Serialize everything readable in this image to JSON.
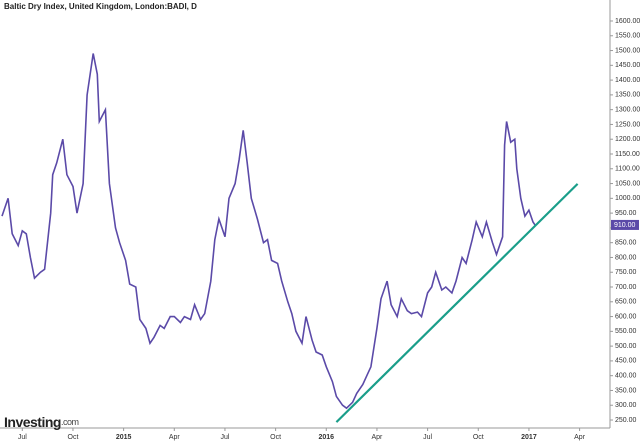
{
  "chart_data": {
    "type": "line",
    "title": "Baltic Dry Index, United Kingdom, London:BADI, D",
    "brand": {
      "name": "Investing",
      "suffix": ".com"
    },
    "xlim": [
      2014.39,
      2017.4
    ],
    "xticks": [
      {
        "value": 2014.5,
        "label": "Jul"
      },
      {
        "value": 2014.75,
        "label": "Oct"
      },
      2015,
      {
        "value": 2015.25,
        "label": "Apr"
      },
      {
        "value": 2015.5,
        "label": "Jul"
      },
      {
        "value": 2015.75,
        "label": "Oct"
      },
      2016,
      {
        "value": 2016.25,
        "label": "Apr"
      },
      {
        "value": 2016.5,
        "label": "Jul"
      },
      {
        "value": 2016.75,
        "label": "Oct"
      },
      2017,
      {
        "value": 2017.25,
        "label": "Apr"
      }
    ],
    "ylim": [
      223,
      1671
    ],
    "yticks": [
      {
        "value": 250,
        "label": "250.00"
      },
      {
        "value": 300,
        "label": "300.00"
      },
      {
        "value": 350,
        "label": "350.00"
      },
      {
        "value": 400,
        "label": "400.00"
      },
      {
        "value": 450,
        "label": "450.00"
      },
      {
        "value": 500,
        "label": "500.00"
      },
      {
        "value": 550,
        "label": "550.00"
      },
      {
        "value": 600,
        "label": "600.00"
      },
      {
        "value": 650,
        "label": "650.00"
      },
      {
        "value": 700,
        "label": "700.00"
      },
      {
        "value": 750,
        "label": "750.00"
      },
      {
        "value": 800,
        "label": "800.00"
      },
      {
        "value": 850,
        "label": "850.00"
      },
      {
        "value": 900,
        "label": "900.00"
      },
      {
        "value": 950,
        "label": "950.00"
      },
      {
        "value": 1000,
        "label": "1000.00"
      },
      {
        "value": 1050,
        "label": "1050.00"
      },
      {
        "value": 1100,
        "label": "1100.00"
      },
      {
        "value": 1150,
        "label": "1150.00"
      },
      {
        "value": 1200,
        "label": "1200.00"
      },
      {
        "value": 1250,
        "label": "1250.00"
      },
      {
        "value": 1300,
        "label": "1300.00"
      },
      {
        "value": 1350,
        "label": "1350.00"
      },
      {
        "value": 1400,
        "label": "1400.00"
      },
      {
        "value": 1450,
        "label": "1450.00"
      },
      {
        "value": 1500,
        "label": "1500.00"
      },
      {
        "value": 1550,
        "label": "1550.00"
      },
      {
        "value": 1600,
        "label": "1600.00"
      }
    ],
    "last_price": {
      "value": 910,
      "label": "910.00",
      "color": "#5b4aa8"
    },
    "series": [
      {
        "color": "#5b4aa8",
        "x": [
          2014.4,
          2014.43,
          2014.45,
          2014.48,
          2014.5,
          2014.52,
          2014.54,
          2014.56,
          2014.59,
          2014.61,
          2014.64,
          2014.65,
          2014.67,
          2014.7,
          2014.72,
          2014.75,
          2014.77,
          2014.8,
          2014.82,
          2014.85,
          2014.87,
          2014.88,
          2014.91,
          2014.93,
          2014.96,
          2014.98,
          2015.01,
          2015.03,
          2015.06,
          2015.08,
          2015.11,
          2015.13,
          2015.15,
          2015.18,
          2015.2,
          2015.23,
          2015.25,
          2015.28,
          2015.3,
          2015.33,
          2015.35,
          2015.38,
          2015.4,
          2015.43,
          2015.45,
          2015.47,
          2015.5,
          2015.52,
          2015.55,
          2015.57,
          2015.59,
          2015.61,
          2015.63,
          2015.66,
          2015.69,
          2015.71,
          2015.73,
          2015.76,
          2015.78,
          2015.81,
          2015.83,
          2015.85,
          2015.88,
          2015.9,
          2015.93,
          2015.95,
          2015.98,
          2016.0,
          2016.03,
          2016.05,
          2016.08,
          2016.1,
          2016.13,
          2016.15,
          2016.18,
          2016.2,
          2016.22,
          2016.25,
          2016.27,
          2016.3,
          2016.32,
          2016.35,
          2016.37,
          2016.4,
          2016.42,
          2016.45,
          2016.47,
          2016.5,
          2016.52,
          2016.54,
          2016.57,
          2016.59,
          2016.62,
          2016.64,
          2016.67,
          2016.69,
          2016.72,
          2016.74,
          2016.77,
          2016.79,
          2016.82,
          2016.84,
          2016.87,
          2016.88,
          2016.89,
          2016.91,
          2016.93,
          2016.94,
          2016.96,
          2016.98,
          2017.0,
          2017.02,
          2017.03
        ],
        "values": [
          940,
          1000,
          880,
          840,
          890,
          880,
          800,
          730,
          750,
          760,
          950,
          1080,
          1120,
          1200,
          1080,
          1040,
          950,
          1050,
          1350,
          1490,
          1420,
          1260,
          1300,
          1050,
          900,
          850,
          790,
          710,
          700,
          590,
          560,
          510,
          530,
          570,
          560,
          600,
          600,
          580,
          600,
          590,
          640,
          590,
          610,
          720,
          860,
          930,
          870,
          1000,
          1050,
          1130,
          1230,
          1120,
          1000,
          930,
          850,
          860,
          790,
          780,
          720,
          650,
          610,
          550,
          510,
          600,
          520,
          480,
          470,
          430,
          380,
          330,
          300,
          290,
          310,
          340,
          370,
          400,
          430,
          560,
          660,
          720,
          640,
          600,
          660,
          620,
          610,
          615,
          600,
          680,
          700,
          750,
          690,
          700,
          680,
          720,
          800,
          780,
          860,
          920,
          870,
          920,
          850,
          810,
          870,
          1180,
          1260,
          1190,
          1200,
          1100,
          1000,
          940,
          960,
          920,
          910
        ]
      },
      {
        "color": "#1a9e8a",
        "x": [
          2016.05,
          2017.24
        ],
        "values": [
          243,
          1049
        ]
      }
    ]
  }
}
